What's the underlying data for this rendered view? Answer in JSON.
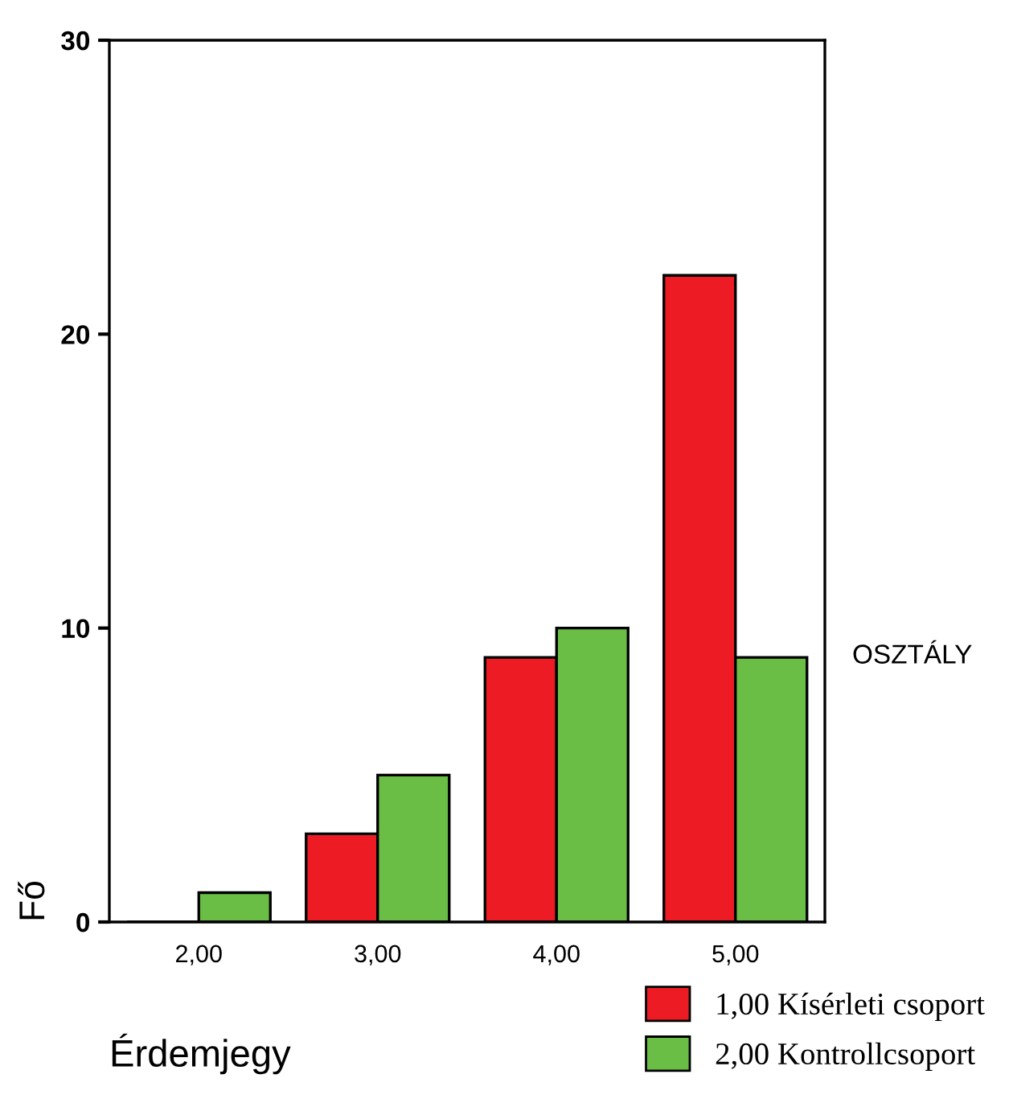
{
  "chart_data": {
    "type": "bar",
    "xlabel": "Érdemjegy",
    "ylabel": "Fő",
    "legend_title": "OSZTÁLY",
    "categories": [
      "2,00",
      "3,00",
      "4,00",
      "5,00"
    ],
    "series": [
      {
        "name": "1,00 Kísérleti csoport",
        "color": "#ed1c24",
        "values": [
          0,
          3,
          9,
          22
        ]
      },
      {
        "name": "2,00 Kontrollcsoport",
        "color": "#6abd45",
        "values": [
          1,
          5,
          10,
          9
        ]
      }
    ],
    "ylim": [
      0,
      30
    ],
    "yticks": [
      0,
      10,
      20,
      30
    ],
    "grid": false,
    "legend": "bottom right"
  }
}
